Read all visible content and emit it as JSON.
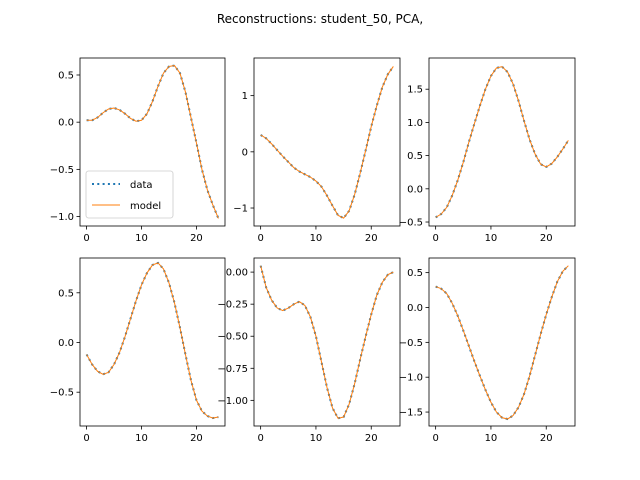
{
  "figure": {
    "title": "Reconstructions: student_50, PCA,",
    "colors": {
      "data": "#1f77b4",
      "model": "#ff7f0e",
      "axes": "#000000",
      "background": "#ffffff"
    }
  },
  "chart_data": [
    {
      "type": "line",
      "x": [
        0,
        1,
        2,
        3,
        4,
        5,
        6,
        7,
        8,
        9,
        10,
        11,
        12,
        13,
        14,
        15,
        16,
        17,
        18,
        19,
        20,
        21,
        22,
        23,
        24
      ],
      "series": [
        {
          "name": "data",
          "style": "dotted",
          "values": [
            0.02,
            0.02,
            0.05,
            0.1,
            0.14,
            0.15,
            0.13,
            0.09,
            0.04,
            0.01,
            0.02,
            0.09,
            0.22,
            0.38,
            0.52,
            0.59,
            0.6,
            0.52,
            0.32,
            0.05,
            -0.22,
            -0.5,
            -0.72,
            -0.88,
            -1.02
          ]
        },
        {
          "name": "model",
          "style": "solid",
          "values": [
            0.02,
            0.02,
            0.05,
            0.1,
            0.14,
            0.15,
            0.13,
            0.09,
            0.04,
            0.01,
            0.02,
            0.09,
            0.22,
            0.38,
            0.52,
            0.59,
            0.6,
            0.52,
            0.32,
            0.05,
            -0.22,
            -0.5,
            -0.72,
            -0.88,
            -1.02
          ]
        }
      ],
      "xlim": [
        -1.2,
        25.2
      ],
      "ylim": [
        -1.1,
        0.68
      ],
      "xticks": [
        0,
        10,
        20
      ],
      "xtick_labels": [
        "0",
        "10",
        "20"
      ],
      "yticks": [
        0.5,
        0.0,
        -0.5,
        -1.0
      ],
      "ytick_labels": [
        "0.5",
        "0.0",
        "−0.5",
        "−1.0"
      ],
      "legend": "lower-left"
    },
    {
      "type": "line",
      "x": [
        0,
        1,
        2,
        3,
        4,
        5,
        6,
        7,
        8,
        9,
        10,
        11,
        12,
        13,
        14,
        15,
        16,
        17,
        18,
        19,
        20,
        21,
        22,
        23,
        24
      ],
      "series": [
        {
          "name": "data",
          "style": "dotted",
          "values": [
            0.3,
            0.24,
            0.14,
            0.03,
            -0.08,
            -0.18,
            -0.28,
            -0.35,
            -0.4,
            -0.45,
            -0.52,
            -0.62,
            -0.78,
            -0.96,
            -1.13,
            -1.18,
            -1.05,
            -0.76,
            -0.38,
            0.03,
            0.45,
            0.82,
            1.15,
            1.38,
            1.52
          ]
        },
        {
          "name": "model",
          "style": "solid",
          "values": [
            0.3,
            0.24,
            0.14,
            0.03,
            -0.08,
            -0.18,
            -0.28,
            -0.35,
            -0.4,
            -0.45,
            -0.52,
            -0.62,
            -0.78,
            -0.96,
            -1.13,
            -1.18,
            -1.05,
            -0.76,
            -0.38,
            0.03,
            0.45,
            0.82,
            1.15,
            1.38,
            1.52
          ]
        }
      ],
      "xlim": [
        -1.2,
        25.2
      ],
      "ylim": [
        -1.32,
        1.67
      ],
      "xticks": [
        0,
        10,
        20
      ],
      "xtick_labels": [
        "0",
        "10",
        "20"
      ],
      "yticks": [
        1,
        0,
        -1
      ],
      "ytick_labels": [
        "1",
        "0",
        "−1"
      ]
    },
    {
      "type": "line",
      "x": [
        0,
        1,
        2,
        3,
        4,
        5,
        6,
        7,
        8,
        9,
        10,
        11,
        12,
        13,
        14,
        15,
        16,
        17,
        18,
        19,
        20,
        21,
        22,
        23,
        24
      ],
      "series": [
        {
          "name": "data",
          "style": "dotted",
          "values": [
            -0.43,
            -0.38,
            -0.28,
            -0.1,
            0.13,
            0.4,
            0.7,
            0.98,
            1.25,
            1.5,
            1.7,
            1.82,
            1.84,
            1.76,
            1.58,
            1.32,
            1.02,
            0.74,
            0.52,
            0.37,
            0.33,
            0.38,
            0.48,
            0.6,
            0.73
          ]
        },
        {
          "name": "model",
          "style": "solid",
          "values": [
            -0.43,
            -0.38,
            -0.28,
            -0.1,
            0.13,
            0.4,
            0.7,
            0.98,
            1.25,
            1.5,
            1.7,
            1.82,
            1.84,
            1.76,
            1.58,
            1.32,
            1.02,
            0.74,
            0.52,
            0.37,
            0.33,
            0.38,
            0.48,
            0.6,
            0.73
          ]
        }
      ],
      "xlim": [
        -1.2,
        25.2
      ],
      "ylim": [
        -0.56,
        1.97
      ],
      "xticks": [
        0,
        10,
        20
      ],
      "xtick_labels": [
        "0",
        "10",
        "20"
      ],
      "yticks": [
        1.5,
        1.0,
        0.5,
        0.0,
        -0.5
      ],
      "ytick_labels": [
        "1.5",
        "1.0",
        "0.5",
        "0.0",
        "−0.5"
      ]
    },
    {
      "type": "line",
      "x": [
        0,
        1,
        2,
        3,
        4,
        5,
        6,
        7,
        8,
        9,
        10,
        11,
        12,
        13,
        14,
        15,
        16,
        17,
        18,
        19,
        20,
        21,
        22,
        23,
        24
      ],
      "series": [
        {
          "name": "data",
          "style": "dotted",
          "values": [
            -0.12,
            -0.22,
            -0.29,
            -0.32,
            -0.3,
            -0.22,
            -0.1,
            0.06,
            0.24,
            0.42,
            0.58,
            0.7,
            0.78,
            0.8,
            0.74,
            0.6,
            0.4,
            0.15,
            -0.12,
            -0.38,
            -0.58,
            -0.69,
            -0.74,
            -0.76,
            -0.75
          ]
        },
        {
          "name": "model",
          "style": "solid",
          "values": [
            -0.12,
            -0.22,
            -0.29,
            -0.32,
            -0.3,
            -0.22,
            -0.1,
            0.06,
            0.24,
            0.42,
            0.58,
            0.7,
            0.78,
            0.8,
            0.74,
            0.6,
            0.4,
            0.15,
            -0.12,
            -0.38,
            -0.58,
            -0.69,
            -0.74,
            -0.76,
            -0.75
          ]
        }
      ],
      "xlim": [
        -1.2,
        25.2
      ],
      "ylim": [
        -0.84,
        0.85
      ],
      "xticks": [
        0,
        10,
        20
      ],
      "xtick_labels": [
        "0",
        "10",
        "20"
      ],
      "yticks": [
        0.5,
        0.0,
        -0.5
      ],
      "ytick_labels": [
        "0.5",
        "0.0",
        "−0.5"
      ]
    },
    {
      "type": "line",
      "x": [
        0,
        1,
        2,
        3,
        4,
        5,
        6,
        7,
        8,
        9,
        10,
        11,
        12,
        13,
        14,
        15,
        16,
        17,
        18,
        19,
        20,
        21,
        22,
        23,
        24
      ],
      "series": [
        {
          "name": "data",
          "style": "dotted",
          "values": [
            0.05,
            -0.12,
            -0.22,
            -0.28,
            -0.3,
            -0.28,
            -0.25,
            -0.23,
            -0.26,
            -0.35,
            -0.5,
            -0.7,
            -0.9,
            -1.06,
            -1.14,
            -1.13,
            -1.03,
            -0.87,
            -0.68,
            -0.5,
            -0.33,
            -0.18,
            -0.08,
            -0.02,
            0.0
          ]
        },
        {
          "name": "model",
          "style": "solid",
          "values": [
            0.05,
            -0.12,
            -0.22,
            -0.28,
            -0.3,
            -0.28,
            -0.25,
            -0.23,
            -0.26,
            -0.35,
            -0.5,
            -0.7,
            -0.9,
            -1.06,
            -1.14,
            -1.13,
            -1.03,
            -0.87,
            -0.68,
            -0.5,
            -0.33,
            -0.18,
            -0.08,
            -0.02,
            0.0
          ]
        }
      ],
      "xlim": [
        -1.2,
        25.2
      ],
      "ylim": [
        -1.2,
        0.11
      ],
      "xticks": [
        0,
        10,
        20
      ],
      "xtick_labels": [
        "0",
        "10",
        "20"
      ],
      "yticks": [
        0.0,
        -0.25,
        -0.5,
        -0.75,
        -1.0
      ],
      "ytick_labels": [
        "0.00",
        "−0.25",
        "−0.50",
        "−0.75",
        "−1.00"
      ]
    },
    {
      "type": "line",
      "x": [
        0,
        1,
        2,
        3,
        4,
        5,
        6,
        7,
        8,
        9,
        10,
        11,
        12,
        13,
        14,
        15,
        16,
        17,
        18,
        19,
        20,
        21,
        22,
        23,
        24
      ],
      "series": [
        {
          "name": "data",
          "style": "dotted",
          "values": [
            0.3,
            0.27,
            0.2,
            0.06,
            -0.12,
            -0.33,
            -0.55,
            -0.77,
            -0.98,
            -1.18,
            -1.36,
            -1.5,
            -1.58,
            -1.6,
            -1.55,
            -1.43,
            -1.24,
            -0.98,
            -0.68,
            -0.38,
            -0.1,
            0.15,
            0.37,
            0.52,
            0.6
          ]
        },
        {
          "name": "model",
          "style": "solid",
          "values": [
            0.3,
            0.27,
            0.2,
            0.06,
            -0.12,
            -0.33,
            -0.55,
            -0.77,
            -0.98,
            -1.18,
            -1.36,
            -1.5,
            -1.58,
            -1.6,
            -1.55,
            -1.43,
            -1.24,
            -0.98,
            -0.68,
            -0.38,
            -0.1,
            0.15,
            0.37,
            0.52,
            0.6
          ]
        }
      ],
      "xlim": [
        -1.2,
        25.2
      ],
      "ylim": [
        -1.7,
        0.71
      ],
      "xticks": [
        0,
        10,
        20
      ],
      "xtick_labels": [
        "0",
        "10",
        "20"
      ],
      "yticks": [
        0.5,
        0.0,
        -0.5,
        -1.0,
        -1.5
      ],
      "ytick_labels": [
        "0.5",
        "0.0",
        "−0.5",
        "−1.0",
        "−1.5"
      ]
    }
  ]
}
